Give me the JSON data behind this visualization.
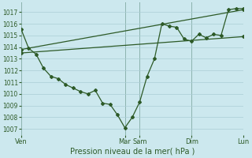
{
  "bg_color": "#cce8ee",
  "grid_color": "#aacdd5",
  "line_color": "#2d5a27",
  "title": "Pression niveau de la mer( hPa )",
  "ylim": [
    1006.5,
    1017.8
  ],
  "yticks": [
    1007,
    1008,
    1009,
    1010,
    1011,
    1012,
    1013,
    1014,
    1015,
    1016,
    1017
  ],
  "day_labels": [
    "Ven",
    "Mar",
    "Sam",
    "Dim",
    "Lun"
  ],
  "day_positions": [
    0,
    7,
    8,
    11.5,
    15
  ],
  "xlim": [
    0,
    15
  ],
  "line1_x": [
    0,
    0.5,
    1.0,
    1.5,
    2.0,
    2.5,
    3.0,
    3.5,
    4.0,
    4.5,
    5.0,
    5.5,
    6.0,
    6.5,
    7.0,
    7.5,
    8.0,
    8.5,
    9.0,
    9.5,
    10.0,
    10.5,
    11.0,
    11.5,
    12.0,
    12.5,
    13.0,
    13.5,
    14.0,
    14.5,
    15.0
  ],
  "line1_y": [
    1015.5,
    1013.9,
    1013.4,
    1012.2,
    1011.5,
    1011.3,
    1010.8,
    1010.5,
    1010.2,
    1010.0,
    1010.3,
    1009.2,
    1009.1,
    1008.2,
    1007.1,
    1008.0,
    1009.3,
    1011.5,
    1013.0,
    1016.0,
    1015.8,
    1015.7,
    1014.7,
    1014.5,
    1015.1,
    1014.8,
    1015.1,
    1015.0,
    1017.2,
    1017.3,
    1017.3
  ],
  "line2_x": [
    0,
    15
  ],
  "line2_y": [
    1013.8,
    1017.2
  ],
  "line3_x": [
    0,
    15
  ],
  "line3_y": [
    1013.5,
    1014.9
  ],
  "n_gridcols": 15,
  "n_gridrows": 11
}
